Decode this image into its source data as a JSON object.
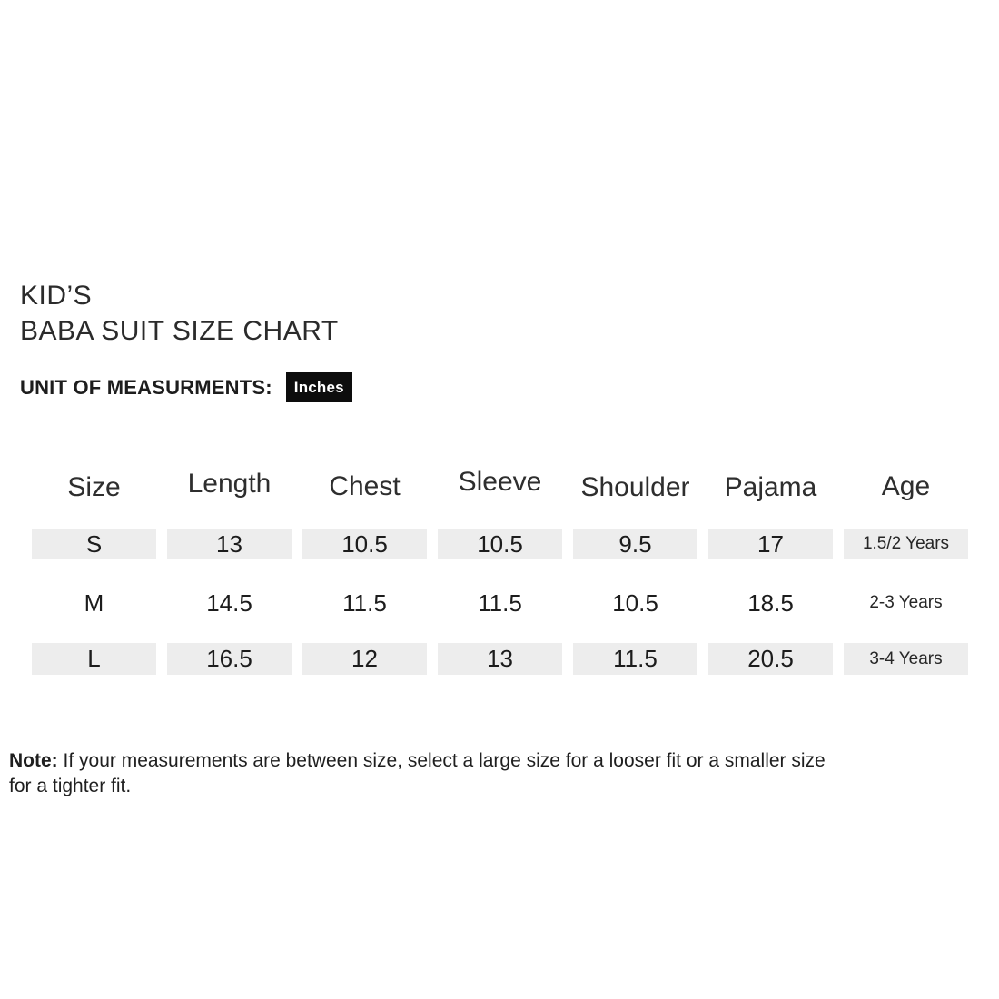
{
  "title": {
    "line1": "KID’S",
    "line2": "BABA SUIT SIZE CHART"
  },
  "unit": {
    "label": "UNIT OF MEASURMENTS:",
    "value": "Inches"
  },
  "size_chart": {
    "columns": [
      "Size",
      "Length",
      "Chest",
      "Sleeve",
      "Shoulder",
      "Pajama",
      "Age"
    ],
    "rows": [
      {
        "size": "S",
        "length": "13",
        "chest": "10.5",
        "sleeve": "10.5",
        "shoulder": "9.5",
        "pajama": "17",
        "age": "1.5/2 Years",
        "shaded": true
      },
      {
        "size": "M",
        "length": "14.5",
        "chest": "11.5",
        "sleeve": "11.5",
        "shoulder": "10.5",
        "pajama": "18.5",
        "age": "2-3 Years",
        "shaded": false
      },
      {
        "size": "L",
        "length": "16.5",
        "chest": "12",
        "sleeve": "13",
        "shoulder": "11.5",
        "pajama": "20.5",
        "age": "3-4 Years",
        "shaded": true
      }
    ]
  },
  "note": {
    "label": "Note:",
    "line1_rest": "If your measurements are between size, select a large size for a looser fit or a smaller size",
    "line2": "for a tighter fit."
  },
  "colors": {
    "badge_background": "#0d0d0d",
    "badge_text": "#ffffff",
    "row_shade": "#ededed",
    "text": "#222222",
    "page_background": "#ffffff"
  }
}
